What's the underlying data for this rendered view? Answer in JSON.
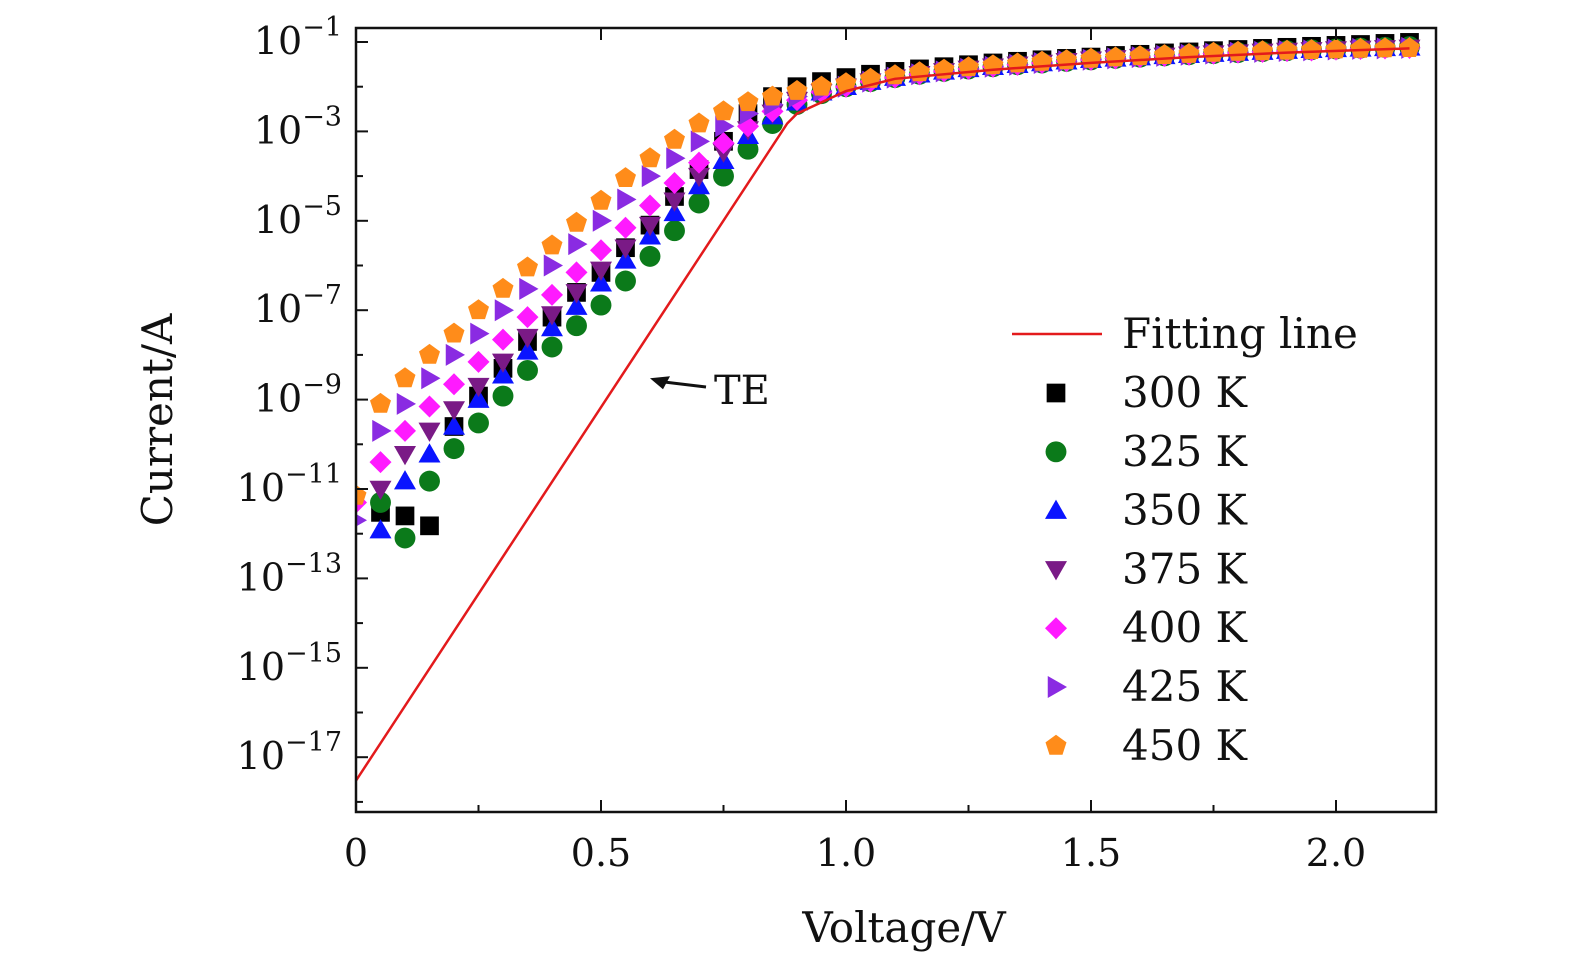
{
  "chart_data": {
    "type": "scatter",
    "title": "",
    "xlabel": "Voltage/V",
    "ylabel": "Current/A",
    "x_scale": "linear",
    "y_scale": "log",
    "xlim": [
      0,
      2.2
    ],
    "ylim": [
      1e-18,
      0.2
    ],
    "x_ticks": [
      {
        "value": 0,
        "label": "0"
      },
      {
        "value": 0.5,
        "label": "0.5"
      },
      {
        "value": 1.0,
        "label": "1.0"
      },
      {
        "value": 1.5,
        "label": "1.5"
      },
      {
        "value": 2.0,
        "label": "2.0"
      }
    ],
    "y_ticks": [
      {
        "value": 0.1,
        "base": "10",
        "exp": "−1"
      },
      {
        "value": 0.001,
        "base": "10",
        "exp": "−3"
      },
      {
        "value": 1e-05,
        "base": "10",
        "exp": "−5"
      },
      {
        "value": 1e-07,
        "base": "10",
        "exp": "−7"
      },
      {
        "value": 1e-09,
        "base": "10",
        "exp": "−9"
      },
      {
        "value": 1e-11,
        "base": "10",
        "exp": "−11"
      },
      {
        "value": 1e-13,
        "base": "10",
        "exp": "−13"
      },
      {
        "value": 1e-15,
        "base": "10",
        "exp": "−15"
      },
      {
        "value": 1e-17,
        "base": "10",
        "exp": "−17"
      }
    ],
    "grid": false,
    "legend_position": "right",
    "colors": {
      "fit": "#e31a1c",
      "s300": "#000000",
      "s325": "#0b7a1a",
      "s350": "#0a14ff",
      "s375": "#7a1a86",
      "s400": "#ff1aff",
      "s425": "#8a2be2",
      "s450": "#ff8c1a"
    },
    "fit_line": {
      "name": "Fitting line",
      "x": [
        0,
        0.88,
        0.9,
        1.0,
        1.1,
        1.3,
        1.5,
        1.7,
        1.9,
        2.15
      ],
      "y": [
        3e-18,
        0.0015,
        0.0025,
        0.008,
        0.015,
        0.024,
        0.034,
        0.046,
        0.058,
        0.072
      ]
    },
    "series": [
      {
        "name": "300 K",
        "marker": "square",
        "color": "#000000",
        "x": [
          0.05,
          0.1,
          0.15,
          0.2,
          0.25,
          0.3,
          0.35,
          0.4,
          0.45,
          0.5,
          0.55,
          0.6,
          0.65,
          0.7,
          0.75,
          0.8,
          0.85,
          0.9,
          0.95,
          1.0,
          1.05,
          1.1,
          1.15,
          1.2,
          1.25,
          1.3,
          1.35,
          1.4,
          1.45,
          1.5,
          1.55,
          1.6,
          1.65,
          1.7,
          1.75,
          1.8,
          1.85,
          1.9,
          1.95,
          2.0,
          2.05,
          2.1,
          2.15
        ],
        "y": [
          3e-12,
          2.5e-12,
          1.5e-12,
          2.5e-10,
          1.2e-09,
          5e-09,
          2e-08,
          7e-08,
          2.5e-07,
          7e-07,
          2.5e-06,
          8e-06,
          3.5e-05,
          0.00014,
          0.0006,
          0.0025,
          0.006,
          0.01,
          0.013,
          0.016,
          0.019,
          0.022,
          0.025,
          0.028,
          0.031,
          0.034,
          0.037,
          0.04,
          0.043,
          0.046,
          0.05,
          0.053,
          0.057,
          0.06,
          0.064,
          0.068,
          0.072,
          0.076,
          0.08,
          0.084,
          0.088,
          0.093,
          0.098
        ]
      },
      {
        "name": "325 K",
        "marker": "circle",
        "color": "#0b7a1a",
        "x": [
          0.05,
          0.1,
          0.15,
          0.2,
          0.25,
          0.3,
          0.35,
          0.4,
          0.45,
          0.5,
          0.55,
          0.6,
          0.65,
          0.7,
          0.75,
          0.8,
          0.85,
          0.9,
          0.95,
          1.0,
          1.05,
          1.1,
          1.15,
          1.2,
          1.25,
          1.3,
          1.35,
          1.4,
          1.45,
          1.5,
          1.55,
          1.6,
          1.65,
          1.7,
          1.75,
          1.8,
          1.85,
          1.9,
          1.95,
          2.0,
          2.05,
          2.1,
          2.15
        ],
        "y": [
          5e-12,
          8e-13,
          1.5e-11,
          8e-11,
          3e-10,
          1.2e-09,
          4.5e-09,
          1.5e-08,
          4.5e-08,
          1.3e-07,
          4.5e-07,
          1.6e-06,
          6e-06,
          2.5e-05,
          0.0001,
          0.0004,
          0.0015,
          0.004,
          0.007,
          0.01,
          0.013,
          0.016,
          0.019,
          0.022,
          0.025,
          0.028,
          0.031,
          0.034,
          0.037,
          0.04,
          0.043,
          0.046,
          0.049,
          0.052,
          0.055,
          0.058,
          0.061,
          0.064,
          0.067,
          0.07,
          0.073,
          0.076,
          0.079
        ]
      },
      {
        "name": "350 K",
        "marker": "triangle-up",
        "color": "#0a14ff",
        "x": [
          0.05,
          0.1,
          0.15,
          0.2,
          0.25,
          0.3,
          0.35,
          0.4,
          0.45,
          0.5,
          0.55,
          0.6,
          0.65,
          0.7,
          0.75,
          0.8,
          0.85,
          0.9,
          0.95,
          1.0,
          1.05,
          1.1,
          1.15,
          1.2,
          1.25,
          1.3,
          1.35,
          1.4,
          1.45,
          1.5,
          1.55,
          1.6,
          1.65,
          1.7,
          1.75,
          1.8,
          1.85,
          1.9,
          1.95,
          2.0,
          2.05,
          2.1,
          2.15
        ],
        "y": [
          1.2e-12,
          1.5e-11,
          6e-11,
          2.5e-10,
          1e-09,
          3.5e-09,
          1.2e-08,
          4e-08,
          1.2e-07,
          4e-07,
          1.3e-06,
          4.5e-06,
          1.5e-05,
          6e-05,
          0.00022,
          0.0008,
          0.0022,
          0.0045,
          0.0075,
          0.01,
          0.013,
          0.016,
          0.019,
          0.022,
          0.025,
          0.028,
          0.031,
          0.034,
          0.037,
          0.04,
          0.043,
          0.046,
          0.049,
          0.052,
          0.055,
          0.058,
          0.061,
          0.064,
          0.067,
          0.07,
          0.072,
          0.074,
          0.076
        ]
      },
      {
        "name": "375 K",
        "marker": "triangle-down",
        "color": "#7a1a86",
        "x": [
          0.05,
          0.1,
          0.15,
          0.2,
          0.25,
          0.3,
          0.35,
          0.4,
          0.45,
          0.5,
          0.55,
          0.6,
          0.65,
          0.7,
          0.75,
          0.8,
          0.85,
          0.9,
          0.95,
          1.0,
          1.05,
          1.1,
          1.15,
          1.2,
          1.25,
          1.3,
          1.35,
          1.4,
          1.45,
          1.5,
          1.55,
          1.6,
          1.65,
          1.7,
          1.75,
          1.8,
          1.85,
          1.9,
          1.95,
          2.0,
          2.05,
          2.1,
          2.15
        ],
        "y": [
          1e-11,
          6e-11,
          2e-10,
          6e-10,
          2e-09,
          7e-09,
          2.5e-08,
          8e-08,
          2.5e-07,
          8e-07,
          2.5e-06,
          8e-06,
          2.8e-05,
          0.0001,
          0.00035,
          0.0011,
          0.0026,
          0.005,
          0.0075,
          0.01,
          0.013,
          0.016,
          0.019,
          0.022,
          0.025,
          0.028,
          0.031,
          0.034,
          0.037,
          0.04,
          0.043,
          0.046,
          0.049,
          0.052,
          0.055,
          0.058,
          0.06,
          0.063,
          0.065,
          0.068,
          0.07,
          0.072,
          0.074
        ]
      },
      {
        "name": "400 K",
        "marker": "diamond",
        "color": "#ff1aff",
        "x": [
          0,
          0.05,
          0.1,
          0.15,
          0.2,
          0.25,
          0.3,
          0.35,
          0.4,
          0.45,
          0.5,
          0.55,
          0.6,
          0.65,
          0.7,
          0.75,
          0.8,
          0.85,
          0.9,
          0.95,
          1.0,
          1.05,
          1.1,
          1.15,
          1.2,
          1.25,
          1.3,
          1.35,
          1.4,
          1.45,
          1.5,
          1.55,
          1.6,
          1.65,
          1.7,
          1.75,
          1.8,
          1.85,
          1.9,
          1.95,
          2.0,
          2.05,
          2.1,
          2.15
        ],
        "y": [
          5e-12,
          4e-11,
          2e-10,
          7e-10,
          2.2e-09,
          7e-09,
          2.2e-08,
          7e-08,
          2.2e-07,
          7e-07,
          2.2e-06,
          7e-06,
          2.2e-05,
          7e-05,
          0.0002,
          0.00055,
          0.0013,
          0.0028,
          0.005,
          0.0075,
          0.01,
          0.013,
          0.016,
          0.019,
          0.022,
          0.025,
          0.028,
          0.031,
          0.034,
          0.037,
          0.04,
          0.043,
          0.046,
          0.049,
          0.052,
          0.055,
          0.058,
          0.06,
          0.063,
          0.065,
          0.068,
          0.07,
          0.072,
          0.074
        ]
      },
      {
        "name": "425 K",
        "marker": "triangle-right",
        "color": "#8a2be2",
        "x": [
          0,
          0.05,
          0.1,
          0.15,
          0.2,
          0.25,
          0.3,
          0.35,
          0.4,
          0.45,
          0.5,
          0.55,
          0.6,
          0.65,
          0.7,
          0.75,
          0.8,
          0.85,
          0.9,
          0.95,
          1.0,
          1.05,
          1.1,
          1.15,
          1.2,
          1.25,
          1.3,
          1.35,
          1.4,
          1.45,
          1.5,
          1.55,
          1.6,
          1.65,
          1.7,
          1.75,
          1.8,
          1.85,
          1.9,
          1.95,
          2.0,
          2.05,
          2.1,
          2.15
        ],
        "y": [
          2e-12,
          2e-10,
          8e-10,
          3e-09,
          1e-08,
          3e-08,
          1e-07,
          3e-07,
          1e-06,
          3e-06,
          1e-05,
          3e-05,
          0.0001,
          0.00025,
          0.0006,
          0.0013,
          0.0025,
          0.004,
          0.006,
          0.008,
          0.01,
          0.013,
          0.016,
          0.019,
          0.022,
          0.025,
          0.028,
          0.031,
          0.034,
          0.037,
          0.04,
          0.043,
          0.046,
          0.049,
          0.052,
          0.055,
          0.058,
          0.06,
          0.063,
          0.065,
          0.068,
          0.07,
          0.072,
          0.074
        ]
      },
      {
        "name": "450 K",
        "marker": "pentagon",
        "color": "#ff8c1a",
        "x": [
          0,
          0.05,
          0.1,
          0.15,
          0.2,
          0.25,
          0.3,
          0.35,
          0.4,
          0.45,
          0.5,
          0.55,
          0.6,
          0.65,
          0.7,
          0.75,
          0.8,
          0.85,
          0.9,
          0.95,
          1.0,
          1.05,
          1.1,
          1.15,
          1.2,
          1.25,
          1.3,
          1.35,
          1.4,
          1.45,
          1.5,
          1.55,
          1.6,
          1.65,
          1.7,
          1.75,
          1.8,
          1.85,
          1.9,
          1.95,
          2.0,
          2.05,
          2.1,
          2.15
        ],
        "y": [
          7e-12,
          8e-10,
          3e-09,
          1e-08,
          3e-08,
          1e-07,
          3e-07,
          9e-07,
          2.8e-06,
          9e-06,
          2.8e-05,
          9e-05,
          0.00025,
          0.00065,
          0.0015,
          0.0028,
          0.0045,
          0.006,
          0.008,
          0.01,
          0.012,
          0.015,
          0.018,
          0.021,
          0.024,
          0.027,
          0.03,
          0.033,
          0.036,
          0.039,
          0.042,
          0.045,
          0.048,
          0.051,
          0.054,
          0.057,
          0.06,
          0.062,
          0.064,
          0.066,
          0.068,
          0.07,
          0.072,
          0.073
        ]
      }
    ],
    "annotations": [
      {
        "text": "TE",
        "arrow_to": {
          "x": 0.6,
          "y": 3e-09
        }
      }
    ]
  }
}
